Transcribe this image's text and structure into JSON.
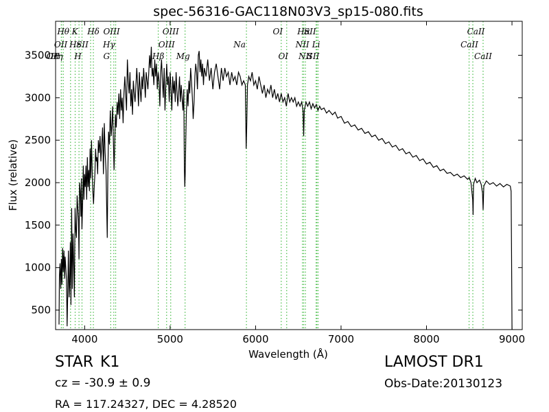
{
  "chart_data": {
    "type": "line",
    "title": "spec-56316-GAC118N03V3_sp15-080.fits",
    "xlabel": "Wavelength (Å)",
    "ylabel": "Flux (relative)",
    "xlim": [
      3660,
      9120
    ],
    "ylim": [
      270,
      3900
    ],
    "xticks": [
      4000,
      5000,
      6000,
      7000,
      8000,
      9000
    ],
    "yticks": [
      500,
      1000,
      1500,
      2000,
      2500,
      3000,
      3500
    ],
    "grid": false,
    "line_color": "#000000",
    "marker_color": "#44bb44",
    "spectrum": [
      [
        3700,
        330
      ],
      [
        3705,
        900
      ],
      [
        3712,
        1050
      ],
      [
        3720,
        750
      ],
      [
        3728,
        1100
      ],
      [
        3735,
        800
      ],
      [
        3742,
        1230
      ],
      [
        3750,
        950
      ],
      [
        3758,
        1200
      ],
      [
        3765,
        870
      ],
      [
        3772,
        1130
      ],
      [
        3780,
        990
      ],
      [
        3788,
        850
      ],
      [
        3795,
        310
      ],
      [
        3802,
        700
      ],
      [
        3810,
        1200
      ],
      [
        3818,
        650
      ],
      [
        3825,
        800
      ],
      [
        3833,
        1300
      ],
      [
        3840,
        560
      ],
      [
        3848,
        1700
      ],
      [
        3856,
        750
      ],
      [
        3864,
        1400
      ],
      [
        3872,
        1050
      ],
      [
        3880,
        650
      ],
      [
        3888,
        1700
      ],
      [
        3896,
        1450
      ],
      [
        3904,
        1350
      ],
      [
        3912,
        1850
      ],
      [
        3920,
        1700
      ],
      [
        3928,
        1550
      ],
      [
        3934,
        1100
      ],
      [
        3940,
        2000
      ],
      [
        3948,
        1900
      ],
      [
        3956,
        1600
      ],
      [
        3962,
        2050
      ],
      [
        3968,
        1450
      ],
      [
        3976,
        1750
      ],
      [
        3984,
        2200
      ],
      [
        3992,
        1800
      ],
      [
        4000,
        2100
      ],
      [
        4008,
        1950
      ],
      [
        4016,
        2200
      ],
      [
        4024,
        1800
      ],
      [
        4032,
        2300
      ],
      [
        4040,
        1950
      ],
      [
        4048,
        2150
      ],
      [
        4056,
        1900
      ],
      [
        4064,
        2400
      ],
      [
        4072,
        2050
      ],
      [
        4080,
        2500
      ],
      [
        4088,
        2150
      ],
      [
        4096,
        1900
      ],
      [
        4104,
        1750
      ],
      [
        4112,
        1950
      ],
      [
        4120,
        2100
      ],
      [
        4128,
        2400
      ],
      [
        4136,
        2250
      ],
      [
        4144,
        2300
      ],
      [
        4152,
        2100
      ],
      [
        4160,
        2500
      ],
      [
        4170,
        2350
      ],
      [
        4180,
        2550
      ],
      [
        4190,
        2250
      ],
      [
        4200,
        2450
      ],
      [
        4210,
        2650
      ],
      [
        4220,
        2100
      ],
      [
        4230,
        2700
      ],
      [
        4240,
        2350
      ],
      [
        4250,
        2150
      ],
      [
        4260,
        1600
      ],
      [
        4265,
        1350
      ],
      [
        4272,
        2150
      ],
      [
        4280,
        2600
      ],
      [
        4290,
        2450
      ],
      [
        4300,
        2850
      ],
      [
        4310,
        2550
      ],
      [
        4320,
        2700
      ],
      [
        4328,
        2900
      ],
      [
        4336,
        2500
      ],
      [
        4344,
        2150
      ],
      [
        4352,
        2450
      ],
      [
        4360,
        2800
      ],
      [
        4370,
        2650
      ],
      [
        4380,
        2950
      ],
      [
        4390,
        2800
      ],
      [
        4400,
        3050
      ],
      [
        4410,
        2750
      ],
      [
        4420,
        3100
      ],
      [
        4430,
        2850
      ],
      [
        4440,
        3000
      ],
      [
        4450,
        2700
      ],
      [
        4460,
        3050
      ],
      [
        4470,
        3250
      ],
      [
        4480,
        3050
      ],
      [
        4490,
        2850
      ],
      [
        4500,
        3450
      ],
      [
        4510,
        3200
      ],
      [
        4520,
        3050
      ],
      [
        4530,
        3300
      ],
      [
        4540,
        2900
      ],
      [
        4550,
        3100
      ],
      [
        4560,
        2800
      ],
      [
        4570,
        3200
      ],
      [
        4580,
        3050
      ],
      [
        4590,
        2950
      ],
      [
        4600,
        3150
      ],
      [
        4610,
        3350
      ],
      [
        4620,
        3150
      ],
      [
        4630,
        2900
      ],
      [
        4640,
        3300
      ],
      [
        4650,
        3100
      ],
      [
        4660,
        2950
      ],
      [
        4670,
        3250
      ],
      [
        4680,
        3100
      ],
      [
        4690,
        3350
      ],
      [
        4700,
        3200
      ],
      [
        4710,
        3000
      ],
      [
        4720,
        3300
      ],
      [
        4730,
        3200
      ],
      [
        4740,
        3100
      ],
      [
        4750,
        3300
      ],
      [
        4760,
        3500
      ],
      [
        4770,
        3350
      ],
      [
        4780,
        3600
      ],
      [
        4790,
        3250
      ],
      [
        4800,
        3350
      ],
      [
        4810,
        3150
      ],
      [
        4820,
        3450
      ],
      [
        4830,
        3250
      ],
      [
        4840,
        3400
      ],
      [
        4850,
        3100
      ],
      [
        4860,
        3300
      ],
      [
        4870,
        3200
      ],
      [
        4880,
        2900
      ],
      [
        4890,
        3300
      ],
      [
        4900,
        3450
      ],
      [
        4910,
        3200
      ],
      [
        4920,
        3000
      ],
      [
        4930,
        3350
      ],
      [
        4940,
        2850
      ],
      [
        4950,
        3150
      ],
      [
        4960,
        3400
      ],
      [
        4970,
        3150
      ],
      [
        4980,
        3250
      ],
      [
        4990,
        2950
      ],
      [
        5000,
        3300
      ],
      [
        5010,
        3100
      ],
      [
        5020,
        2850
      ],
      [
        5030,
        3250
      ],
      [
        5040,
        3050
      ],
      [
        5050,
        3200
      ],
      [
        5060,
        2950
      ],
      [
        5070,
        3300
      ],
      [
        5080,
        3100
      ],
      [
        5090,
        2900
      ],
      [
        5100,
        3050
      ],
      [
        5110,
        3250
      ],
      [
        5120,
        2950
      ],
      [
        5130,
        3150
      ],
      [
        5140,
        3000
      ],
      [
        5150,
        2850
      ],
      [
        5160,
        3100
      ],
      [
        5167,
        2150
      ],
      [
        5172,
        1950
      ],
      [
        5177,
        2100
      ],
      [
        5183,
        2500
      ],
      [
        5190,
        2800
      ],
      [
        5200,
        3100
      ],
      [
        5210,
        2900
      ],
      [
        5220,
        3200
      ],
      [
        5230,
        3050
      ],
      [
        5240,
        3350
      ],
      [
        5250,
        3200
      ],
      [
        5260,
        3000
      ],
      [
        5270,
        2750
      ],
      [
        5280,
        2950
      ],
      [
        5290,
        3250
      ],
      [
        5300,
        3400
      ],
      [
        5310,
        3300
      ],
      [
        5320,
        3100
      ],
      [
        5330,
        3500
      ],
      [
        5340,
        3550
      ],
      [
        5350,
        3300
      ],
      [
        5360,
        3450
      ],
      [
        5370,
        3250
      ],
      [
        5380,
        3400
      ],
      [
        5390,
        3150
      ],
      [
        5400,
        3350
      ],
      [
        5420,
        3250
      ],
      [
        5440,
        3450
      ],
      [
        5460,
        3200
      ],
      [
        5480,
        3350
      ],
      [
        5500,
        3100
      ],
      [
        5520,
        3300
      ],
      [
        5540,
        3400
      ],
      [
        5560,
        3250
      ],
      [
        5580,
        3100
      ],
      [
        5600,
        3350
      ],
      [
        5620,
        3200
      ],
      [
        5640,
        3350
      ],
      [
        5660,
        3250
      ],
      [
        5680,
        3300
      ],
      [
        5700,
        3150
      ],
      [
        5720,
        3300
      ],
      [
        5740,
        3200
      ],
      [
        5760,
        3250
      ],
      [
        5780,
        3150
      ],
      [
        5800,
        3300
      ],
      [
        5820,
        3250
      ],
      [
        5840,
        3150
      ],
      [
        5860,
        3200
      ],
      [
        5880,
        3150
      ],
      [
        5890,
        2400
      ],
      [
        5896,
        2650
      ],
      [
        5905,
        3150
      ],
      [
        5920,
        3250
      ],
      [
        5940,
        3200
      ],
      [
        5960,
        3300
      ],
      [
        5980,
        3150
      ],
      [
        6000,
        3200
      ],
      [
        6020,
        3100
      ],
      [
        6040,
        3250
      ],
      [
        6060,
        3150
      ],
      [
        6080,
        3050
      ],
      [
        6100,
        3150
      ],
      [
        6120,
        3000
      ],
      [
        6140,
        3100
      ],
      [
        6160,
        3050
      ],
      [
        6180,
        3150
      ],
      [
        6200,
        3000
      ],
      [
        6220,
        3100
      ],
      [
        6240,
        2980
      ],
      [
        6260,
        3050
      ],
      [
        6280,
        2950
      ],
      [
        6300,
        3050
      ],
      [
        6320,
        2950
      ],
      [
        6340,
        3000
      ],
      [
        6360,
        2900
      ],
      [
        6380,
        3050
      ],
      [
        6400,
        2950
      ],
      [
        6420,
        3000
      ],
      [
        6440,
        2950
      ],
      [
        6460,
        3000
      ],
      [
        6480,
        2900
      ],
      [
        6500,
        2950
      ],
      [
        6520,
        2900
      ],
      [
        6540,
        2950
      ],
      [
        6555,
        2850
      ],
      [
        6563,
        2550
      ],
      [
        6570,
        2850
      ],
      [
        6590,
        2950
      ],
      [
        6610,
        2900
      ],
      [
        6630,
        2950
      ],
      [
        6650,
        2870
      ],
      [
        6670,
        2930
      ],
      [
        6690,
        2880
      ],
      [
        6710,
        2920
      ],
      [
        6730,
        2850
      ],
      [
        6750,
        2900
      ],
      [
        6770,
        2860
      ],
      [
        6800,
        2880
      ],
      [
        6830,
        2820
      ],
      [
        6860,
        2850
      ],
      [
        6900,
        2800
      ],
      [
        6930,
        2830
      ],
      [
        6960,
        2760
      ],
      [
        7000,
        2780
      ],
      [
        7040,
        2700
      ],
      [
        7080,
        2720
      ],
      [
        7120,
        2660
      ],
      [
        7160,
        2680
      ],
      [
        7200,
        2620
      ],
      [
        7240,
        2640
      ],
      [
        7280,
        2580
      ],
      [
        7320,
        2600
      ],
      [
        7360,
        2540
      ],
      [
        7400,
        2560
      ],
      [
        7440,
        2500
      ],
      [
        7480,
        2520
      ],
      [
        7520,
        2460
      ],
      [
        7560,
        2480
      ],
      [
        7600,
        2420
      ],
      [
        7640,
        2440
      ],
      [
        7680,
        2380
      ],
      [
        7720,
        2400
      ],
      [
        7760,
        2340
      ],
      [
        7800,
        2360
      ],
      [
        7840,
        2300
      ],
      [
        7880,
        2320
      ],
      [
        7920,
        2260
      ],
      [
        7960,
        2280
      ],
      [
        8000,
        2220
      ],
      [
        8040,
        2240
      ],
      [
        8080,
        2180
      ],
      [
        8120,
        2200
      ],
      [
        8160,
        2140
      ],
      [
        8200,
        2160
      ],
      [
        8240,
        2110
      ],
      [
        8280,
        2120
      ],
      [
        8320,
        2080
      ],
      [
        8360,
        2100
      ],
      [
        8400,
        2060
      ],
      [
        8440,
        2080
      ],
      [
        8480,
        2040
      ],
      [
        8500,
        2060
      ],
      [
        8520,
        2000
      ],
      [
        8540,
        1800
      ],
      [
        8545,
        1620
      ],
      [
        8550,
        1980
      ],
      [
        8570,
        2050
      ],
      [
        8590,
        2000
      ],
      [
        8620,
        2030
      ],
      [
        8640,
        1980
      ],
      [
        8655,
        1880
      ],
      [
        8662,
        1680
      ],
      [
        8670,
        1960
      ],
      [
        8700,
        2020
      ],
      [
        8740,
        1980
      ],
      [
        8780,
        2000
      ],
      [
        8820,
        1960
      ],
      [
        8860,
        1990
      ],
      [
        8900,
        1950
      ],
      [
        8940,
        1980
      ],
      [
        8980,
        1960
      ],
      [
        8990,
        1900
      ],
      [
        8995,
        1200
      ],
      [
        9000,
        270
      ]
    ],
    "lines": [
      {
        "label": "OII",
        "x": 3727,
        "row": 2,
        "dx": -12
      },
      {
        "label": "Hθ",
        "x": 3750,
        "row": 0,
        "dx": 0
      },
      {
        "label": "OII",
        "x": 3729,
        "row": 1,
        "dx": -1
      },
      {
        "label": "Hη",
        "x": 3835,
        "row": 2,
        "dx": -20
      },
      {
        "label": "Hε",
        "x": 3889,
        "row": 1,
        "dx": 0
      },
      {
        "label": "K",
        "x": 3934,
        "row": 0,
        "dx": -6
      },
      {
        "label": "SII",
        "x": 4070,
        "row": 1,
        "dx": -12
      },
      {
        "label": "H",
        "x": 3969,
        "row": 2,
        "dx": -6
      },
      {
        "label": "Hδ",
        "x": 4102,
        "row": 0,
        "dx": 0
      },
      {
        "label": "G",
        "x": 4305,
        "row": 2,
        "dx": -6
      },
      {
        "label": "Hγ",
        "x": 4341,
        "row": 1,
        "dx": -7
      },
      {
        "label": "OIII",
        "x": 4363,
        "row": 0,
        "dx": -6
      },
      {
        "label": "Hβ",
        "x": 4861,
        "row": 2,
        "dx": 0
      },
      {
        "label": "OIII",
        "x": 4959,
        "row": 1,
        "dx": 0
      },
      {
        "label": "OIII",
        "x": 5007,
        "row": 0,
        "dx": 0
      },
      {
        "label": "Mg",
        "x": 5175,
        "row": 2,
        "dx": -3
      },
      {
        "label": "Na",
        "x": 5893,
        "row": 1,
        "dx": -10
      },
      {
        "label": "OI",
        "x": 6300,
        "row": 0,
        "dx": -5
      },
      {
        "label": "OI",
        "x": 6364,
        "row": 2,
        "dx": -5
      },
      {
        "label": "Hα",
        "x": 6563,
        "row": 0,
        "dx": 0
      },
      {
        "label": "NII",
        "x": 6548,
        "row": 1,
        "dx": 0
      },
      {
        "label": "NII",
        "x": 6583,
        "row": 2,
        "dx": 0
      },
      {
        "label": "SII",
        "x": 6717,
        "row": 0,
        "dx": -10
      },
      {
        "label": "Li",
        "x": 6708,
        "row": 1,
        "dx": 0
      },
      {
        "label": "SII",
        "x": 6731,
        "row": 2,
        "dx": -7
      },
      {
        "label": "CaII",
        "x": 8498,
        "row": 0,
        "dx": 10
      },
      {
        "label": "CaII",
        "x": 8542,
        "row": 1,
        "dx": -5
      },
      {
        "label": "CaII",
        "x": 8662,
        "row": 2,
        "dx": 0
      }
    ]
  },
  "info": {
    "object_class": "STAR",
    "subclass": "K1",
    "survey": "LAMOST DR1",
    "redshift": "cz = -30.9 ± 0.9",
    "obs_date": "Obs-Date:20130123",
    "coords": "RA = 117.24327, DEC = 4.28520"
  }
}
